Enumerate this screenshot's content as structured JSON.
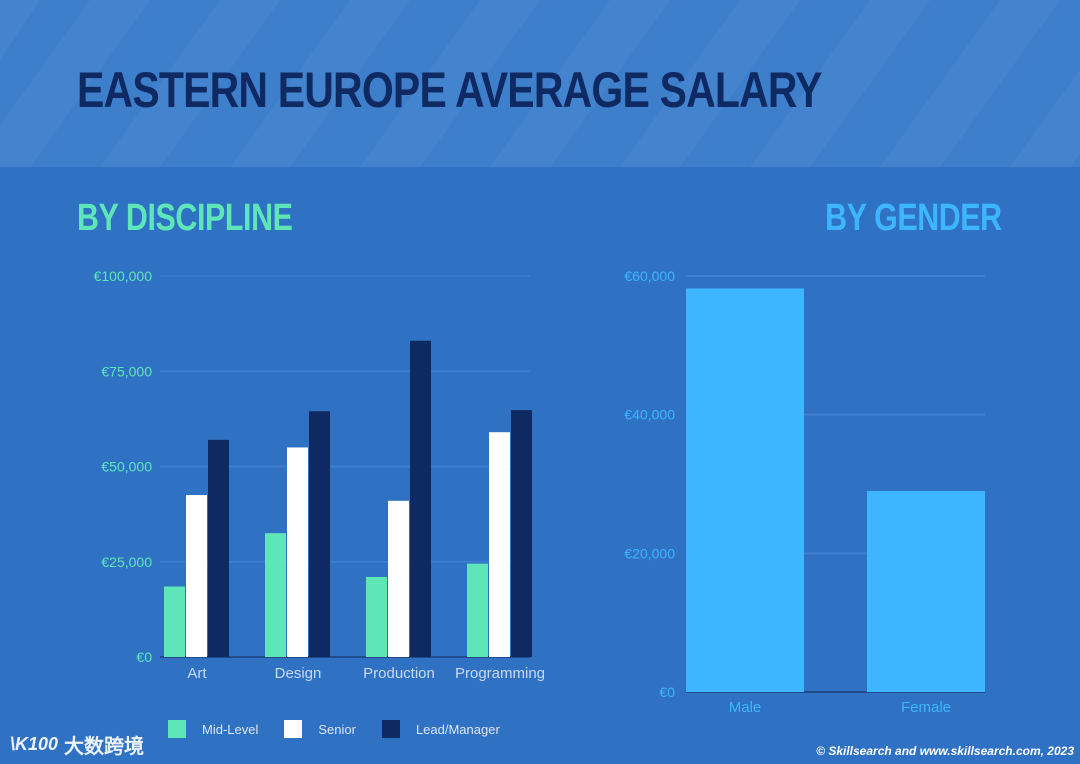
{
  "title": "EASTERN EUROPE AVERAGE SALARY",
  "discipline_title": "BY DISCIPLINE",
  "gender_title": "BY GENDER",
  "colors": {
    "background": "#2f72c4",
    "banner": "#3d7fcb",
    "mid_level": "#5ee6b8",
    "senior": "#ffffff",
    "lead": "#0f2a63",
    "gender_bar": "#3eb6ff"
  },
  "chart_data": [
    {
      "type": "bar",
      "title": "BY DISCIPLINE",
      "categories": [
        "Art",
        "Design",
        "Production",
        "Programming"
      ],
      "series": [
        {
          "name": "Mid-Level",
          "values": [
            18500,
            32500,
            21000,
            24500
          ]
        },
        {
          "name": "Senior",
          "values": [
            42500,
            55000,
            41000,
            59000
          ]
        },
        {
          "name": "Lead/Manager",
          "values": [
            57000,
            64500,
            83000,
            64800
          ]
        }
      ],
      "ylim": [
        0,
        100000
      ],
      "yticks": [
        "€0",
        "€25,000",
        "€50,000",
        "€75,000",
        "€100,000"
      ],
      "grid": true,
      "legend": "bottom"
    },
    {
      "type": "bar",
      "title": "BY GENDER",
      "categories": [
        "Male",
        "Female"
      ],
      "values": [
        58200,
        29000
      ],
      "ylim": [
        0,
        60000
      ],
      "yticks": [
        "€0",
        "€20,000",
        "€40,000",
        "€60,000"
      ],
      "grid": true
    }
  ],
  "legend": {
    "mid_level": "Mid-Level",
    "senior": "Senior",
    "lead": "Lead/Manager"
  },
  "watermark": {
    "logo": "\\K100",
    "text": "大数跨境"
  },
  "credit": "© Skillsearch and www.skillsearch.com, 2023"
}
